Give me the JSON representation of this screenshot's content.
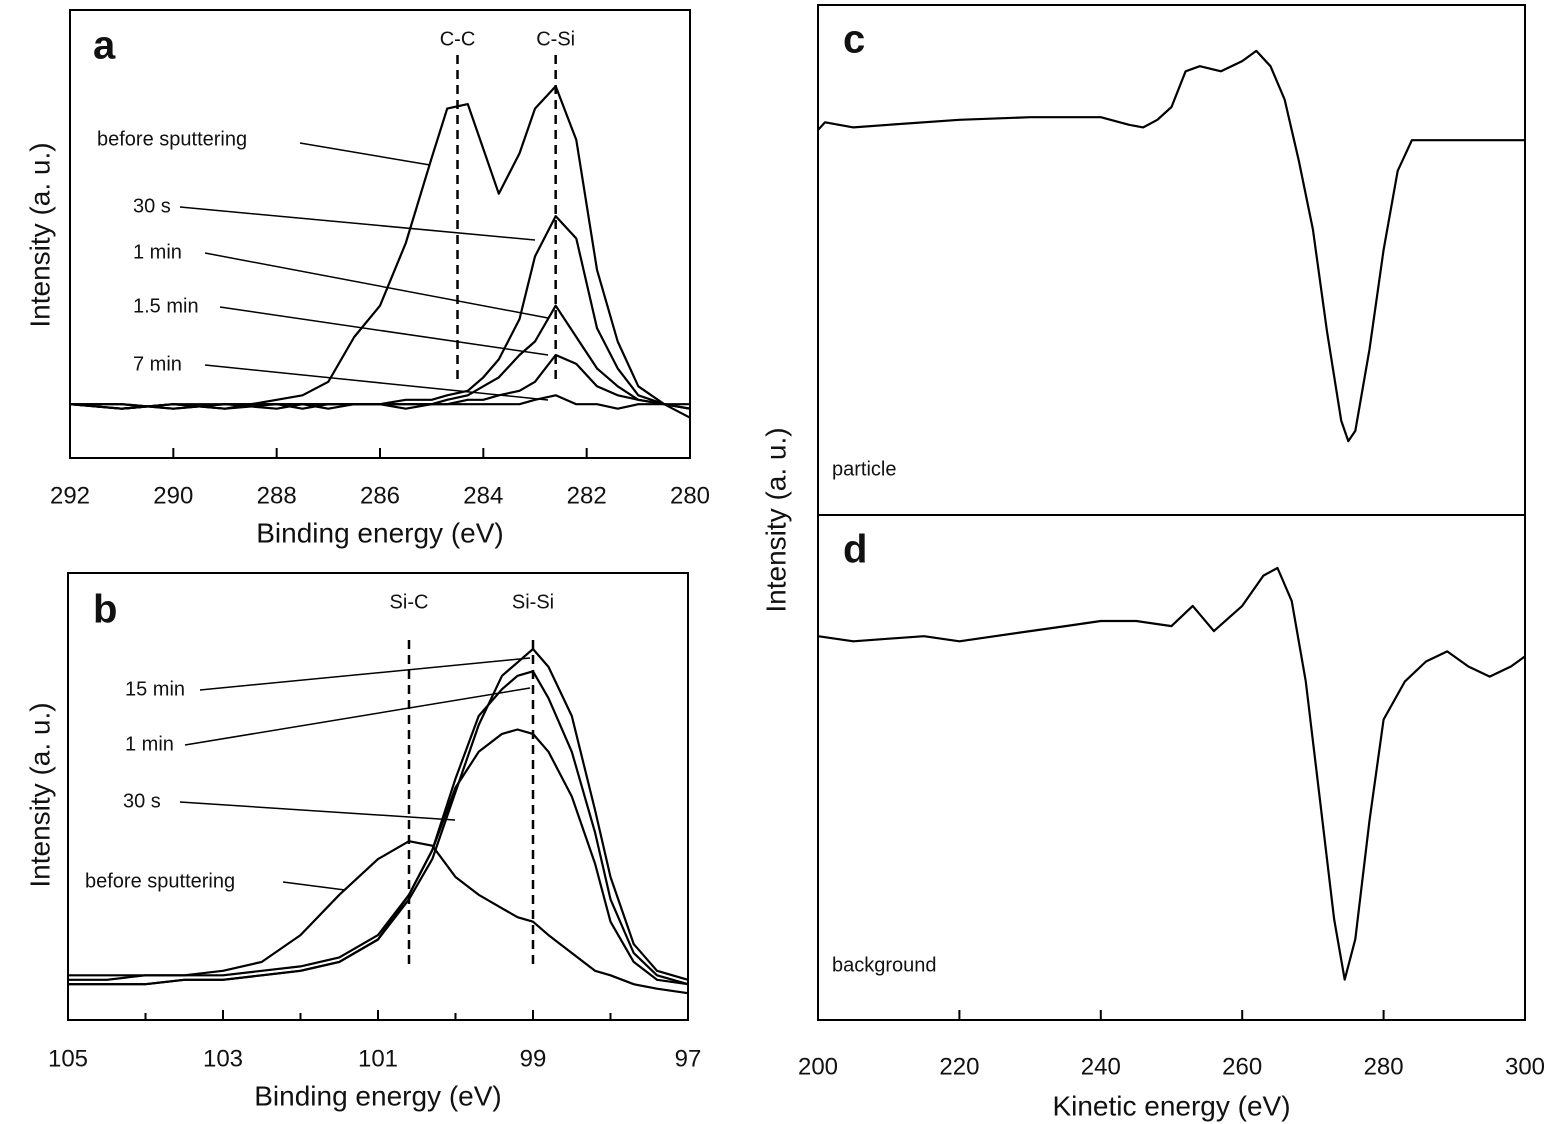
{
  "chart_data": [
    {
      "type": "line",
      "panel": "a",
      "xlabel": "Binding energy (eV)",
      "ylabel": "Intensity (a. u.)",
      "xlim": [
        292,
        280
      ],
      "xticks": [
        292,
        290,
        288,
        286,
        284,
        282,
        280
      ],
      "ylim": [
        0,
        100
      ],
      "x": [
        292,
        291,
        290,
        289,
        288,
        287.5,
        287,
        286.5,
        286,
        285.5,
        285,
        284.7,
        284.3,
        284,
        283.7,
        283.3,
        283,
        282.6,
        282.2,
        281.8,
        281.4,
        281,
        280.5,
        280
      ],
      "series": [
        {
          "name": "before sputtering",
          "color": "#000",
          "values": [
            12,
            11,
            12,
            11,
            13,
            14,
            17,
            27,
            34,
            48,
            67,
            78,
            79,
            69,
            59,
            68,
            78,
            83,
            71,
            42,
            26,
            16,
            12,
            9
          ]
        },
        {
          "name": "30 s",
          "color": "#000",
          "values": [
            12,
            11,
            12,
            12,
            11,
            12,
            12,
            12,
            12,
            13,
            13,
            14,
            15,
            18,
            22,
            31,
            45,
            54,
            49,
            29,
            20,
            14,
            12,
            11
          ]
        },
        {
          "name": "1 min",
          "color": "#000",
          "values": [
            12,
            12,
            11,
            12,
            12,
            12,
            12,
            12,
            12,
            12,
            12,
            13,
            14,
            16,
            18,
            23,
            26,
            34,
            27,
            20,
            16,
            13,
            12,
            11
          ]
        },
        {
          "name": "1.5 min",
          "color": "#000",
          "values": [
            12,
            12,
            11,
            12,
            12,
            11,
            12,
            12,
            12,
            12,
            12,
            12,
            13,
            13,
            14,
            15,
            17,
            23,
            21,
            16,
            14,
            13,
            12,
            11
          ]
        },
        {
          "name": "7 min",
          "color": "#000",
          "values": [
            12,
            11,
            12,
            11,
            12,
            12,
            11,
            12,
            12,
            11,
            12,
            12,
            12,
            12,
            12,
            12,
            13,
            14,
            12,
            12,
            11,
            12,
            12,
            12
          ]
        }
      ],
      "markers": [
        {
          "label": "C-C",
          "x": 284.5
        },
        {
          "label": "C-Si",
          "x": 282.6
        }
      ]
    },
    {
      "type": "line",
      "panel": "b",
      "xlabel": "Binding energy (eV)",
      "ylabel": "Intensity (a. u.)",
      "xlim": [
        105,
        97
      ],
      "xticks": [
        105,
        103,
        101,
        99,
        97
      ],
      "xminorticks": [
        104,
        102,
        100,
        98
      ],
      "ylim": [
        0,
        100
      ],
      "x": [
        105,
        104.5,
        104,
        103.5,
        103,
        102.5,
        102,
        101.5,
        101,
        100.6,
        100.3,
        100,
        99.7,
        99.4,
        99.2,
        99,
        98.8,
        98.5,
        98.2,
        98,
        97.7,
        97.4,
        97
      ],
      "series": [
        {
          "name": "before sputtering",
          "color": "#000",
          "values": [
            9,
            9,
            10,
            10,
            11,
            13,
            19,
            28,
            36,
            40,
            39,
            32,
            28,
            25,
            23,
            22,
            19,
            15,
            11,
            10,
            8,
            7,
            6
          ]
        },
        {
          "name": "30 s",
          "color": "#000",
          "values": [
            10,
            10,
            10,
            10,
            10,
            11,
            12,
            14,
            19,
            28,
            38,
            52,
            60,
            64,
            65,
            64,
            60,
            50,
            35,
            22,
            13,
            9,
            8
          ]
        },
        {
          "name": "1 min",
          "color": "#000",
          "values": [
            8,
            8,
            8,
            9,
            9,
            10,
            11,
            13,
            18,
            28,
            38,
            54,
            68,
            74,
            77,
            78,
            72,
            60,
            42,
            27,
            15,
            10,
            8
          ]
        },
        {
          "name": "15 min",
          "color": "#000",
          "values": [
            8,
            8,
            8,
            9,
            9,
            10,
            11,
            13,
            18,
            27,
            36,
            51,
            66,
            77,
            80,
            83,
            79,
            68,
            47,
            32,
            17,
            11,
            9
          ]
        }
      ],
      "markers": [
        {
          "label": "Si-C",
          "x": 100.6
        },
        {
          "label": "Si-Si",
          "x": 99
        }
      ]
    },
    {
      "type": "line",
      "panel": "c",
      "ylabel": "Intensity (a. u.)",
      "xlim": [
        200,
        300
      ],
      "ylim": [
        0,
        100
      ],
      "x": [
        200,
        201,
        205,
        210,
        220,
        230,
        240,
        244,
        246,
        248,
        250,
        252,
        254,
        257,
        260,
        262,
        264,
        266,
        268,
        270,
        272,
        274,
        275,
        276,
        278,
        280,
        282,
        284,
        286,
        290,
        295,
        300
      ],
      "series": [
        {
          "name": "particle",
          "color": "#000",
          "values": [
            75.5,
            77,
            76,
            76.5,
            77.5,
            78,
            78,
            76.5,
            76,
            77.5,
            80,
            87,
            88,
            87,
            89,
            91,
            88,
            81.5,
            69.5,
            56,
            36,
            18.5,
            14.5,
            16.5,
            32.5,
            52,
            67.5,
            73.5,
            73.5,
            73.5,
            73.5,
            73.5
          ]
        }
      ]
    },
    {
      "type": "line",
      "panel": "d",
      "xlabel": "Kinetic energy (eV)",
      "xlim": [
        200,
        300
      ],
      "xticks": [
        200,
        220,
        240,
        260,
        280,
        300
      ],
      "ylim": [
        0,
        100
      ],
      "x": [
        200,
        205,
        210,
        215,
        220,
        225,
        230,
        235,
        240,
        245,
        250,
        253,
        256,
        260,
        263,
        265,
        267,
        269,
        271,
        273,
        274.5,
        276,
        278,
        280,
        283,
        286,
        289,
        292,
        295,
        298,
        300
      ],
      "series": [
        {
          "name": "background",
          "color": "#000",
          "values": [
            76,
            75,
            75.5,
            76,
            75,
            76,
            77,
            78,
            79,
            79,
            78,
            82,
            77,
            82,
            88,
            89.5,
            83,
            67,
            43.5,
            20,
            8,
            16,
            39.5,
            59.5,
            67,
            71,
            73,
            70,
            68,
            70,
            72
          ]
        }
      ]
    }
  ]
}
